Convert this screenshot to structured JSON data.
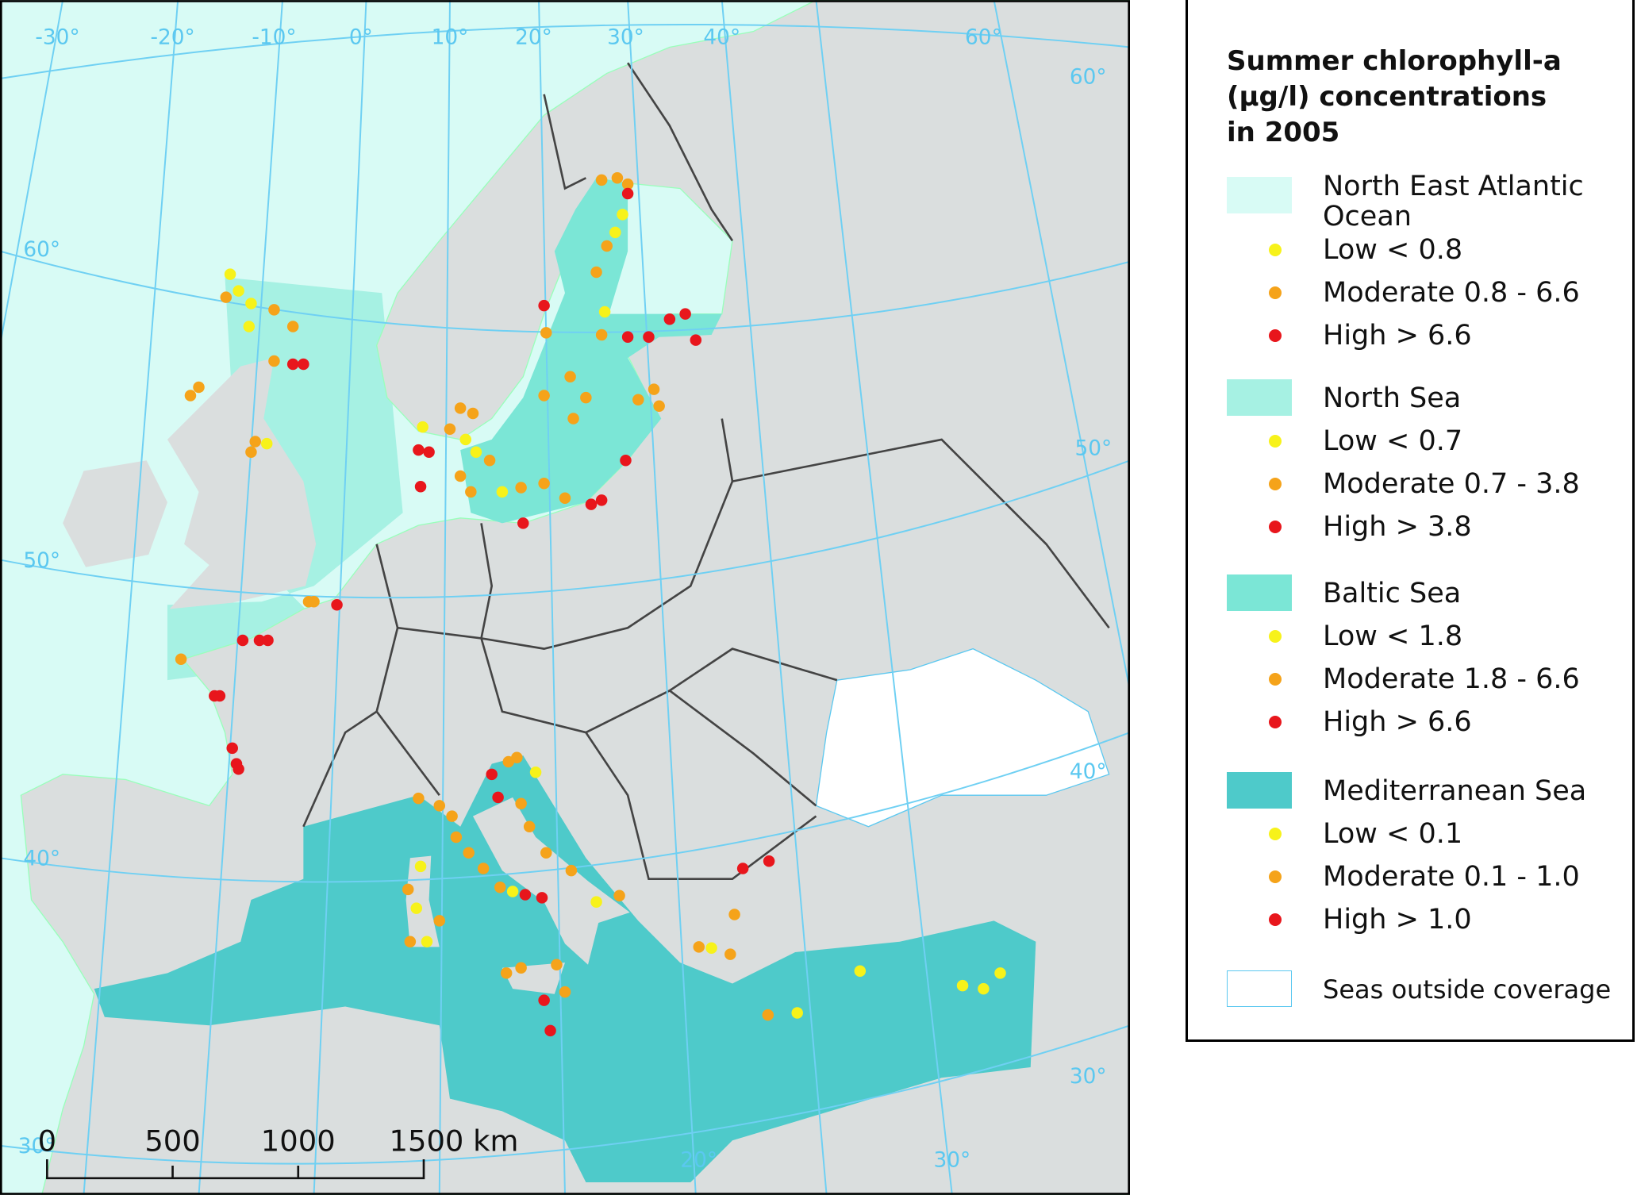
{
  "map": {
    "graticule_labels": [
      "-30°",
      "-20°",
      "-10°",
      "0°",
      "10°",
      "20°",
      "30°",
      "40°",
      "60°",
      "60°",
      "50°",
      "40°",
      "30°",
      "60°",
      "50°",
      "40°",
      "30°",
      "20°",
      "30°"
    ],
    "scale_bar": [
      "0",
      "500",
      "1000",
      "1500 km"
    ]
  },
  "legend": {
    "title": [
      "Summer chlorophyll-a",
      "(µg/l) concentrations",
      "in 2005"
    ],
    "groups": [
      {
        "name": "North East Atlantic Ocean",
        "classes": [
          "Low < 0.8",
          "Moderate 0.8 - 6.6",
          "High > 6.6"
        ]
      },
      {
        "name": "North Sea",
        "classes": [
          "Low < 0.7",
          "Moderate 0.7 - 3.8",
          "High > 3.8"
        ]
      },
      {
        "name": "Baltic Sea",
        "classes": [
          "Low < 1.8",
          "Moderate 1.8 - 6.6",
          "High > 6.6"
        ]
      },
      {
        "name": "Mediterranean Sea",
        "classes": [
          "Low < 0.1",
          "Moderate 0.1 - 1.0",
          "High > 1.0"
        ]
      }
    ],
    "outside": "Seas outside coverage"
  }
}
